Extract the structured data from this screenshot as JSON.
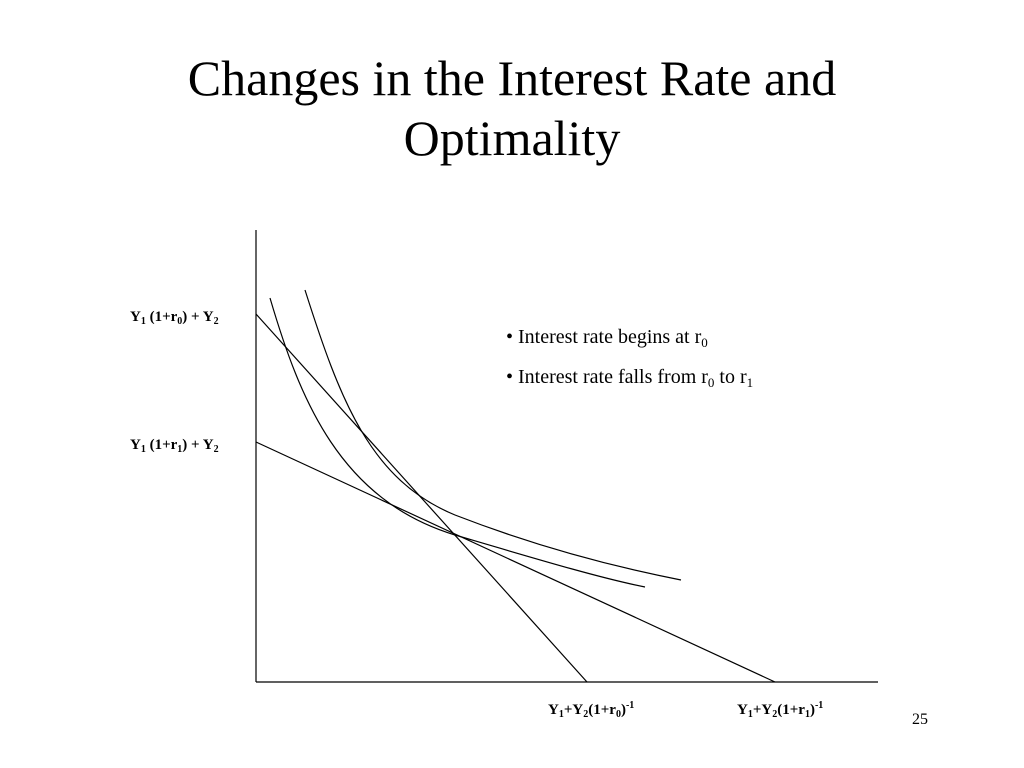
{
  "title": {
    "line1": "Changes in the Interest Rate and",
    "line2": "Optimality"
  },
  "y_labels": {
    "r0": {
      "Y": "Y",
      "s1": "1",
      "mid": " (1+r",
      "s2": "0",
      "end": ") + Y",
      "s3": "2"
    },
    "r1": {
      "Y": "Y",
      "s1": "1",
      "mid": " (1+r",
      "s2": "1",
      "end": ") + Y",
      "s3": "2"
    }
  },
  "x_labels": {
    "r0": {
      "a": "Y",
      "s1": "1",
      "b": "+Y",
      "s2": "2",
      "c": "(1+r",
      "s3": "0",
      "d": ")",
      "sup": "-1"
    },
    "r1": {
      "a": "Y",
      "s1": "1",
      "b": "+Y",
      "s2": "2",
      "c": "(1+r",
      "s3": "1",
      "d": ")",
      "sup": "-1"
    }
  },
  "bullets": {
    "b1": {
      "text": "• Interest rate begins at r",
      "sub": "0"
    },
    "b2": {
      "pre": "• Interest rate falls from r",
      "sub1": "0",
      "mid": " to r",
      "sub2": "1"
    }
  },
  "page_number": "25"
}
